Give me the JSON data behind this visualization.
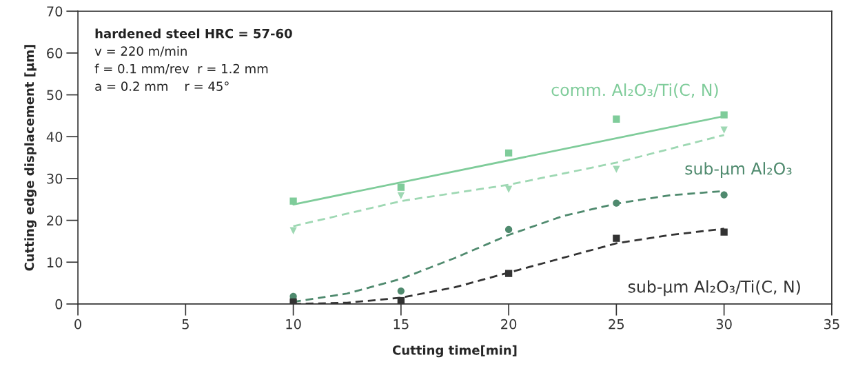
{
  "chart_data": {
    "type": "scatter",
    "xlabel": "Cutting time[min]",
    "ylabel": "Cutting edge displacement [µm]",
    "xlim": [
      0,
      35
    ],
    "ylim": [
      0,
      70
    ],
    "xticks": [
      0,
      5,
      10,
      15,
      20,
      25,
      30,
      35
    ],
    "yticks": [
      0,
      10,
      20,
      30,
      40,
      50,
      60,
      70
    ],
    "grid": false,
    "legend": false,
    "series": [
      {
        "marker": "square",
        "color": "#7fcc9a",
        "x": [
          10,
          15,
          20,
          25,
          30
        ],
        "values": [
          24.6,
          27.9,
          36.1,
          44.2,
          45.2
        ]
      },
      {
        "type": "line",
        "name": "comm. Al₂O₃/Ti(C, N)",
        "line_style": "solid",
        "color": "#7fcc9a",
        "x": [
          10,
          30
        ],
        "values": [
          23.8,
          44.9
        ]
      },
      {
        "marker": "triangle",
        "color": "#9ed8b3",
        "x": [
          10,
          15,
          20,
          25,
          30
        ],
        "values": [
          17.5,
          25.9,
          27.4,
          32.2,
          41.6
        ]
      },
      {
        "type": "line",
        "line_style": "dashed",
        "color": "#9ed8b3",
        "x": [
          10,
          15,
          20,
          25,
          30
        ],
        "values": [
          18.6,
          24.6,
          28.5,
          33.8,
          40.4
        ]
      },
      {
        "marker": "circle",
        "color": "#4f8a6e",
        "x": [
          10,
          15,
          20,
          25,
          30
        ],
        "values": [
          1.8,
          3.1,
          17.8,
          24.1,
          26.1
        ]
      },
      {
        "type": "line",
        "name": "sub-µm Al₂O₃",
        "line_style": "dashed",
        "color": "#4f8a6e",
        "x": [
          10,
          12.5,
          15,
          17.5,
          20,
          22.5,
          25,
          27.5,
          30
        ],
        "values": [
          0.5,
          2.5,
          6,
          11,
          16.5,
          21,
          24,
          26,
          27
        ]
      },
      {
        "marker": "square",
        "color": "#333333",
        "x": [
          10,
          15,
          20,
          25,
          30
        ],
        "values": [
          0.5,
          0.8,
          7.3,
          15.7,
          17.2
        ]
      },
      {
        "type": "line",
        "name": "sub-µm Al₂O₃/Ti(C, N)",
        "line_style": "dashed",
        "color": "#333333",
        "x": [
          10,
          12.5,
          15,
          17.5,
          20,
          22.5,
          25,
          27.5,
          30
        ],
        "values": [
          0,
          0.3,
          1.5,
          4,
          7.5,
          11,
          14.5,
          16.5,
          18
        ]
      }
    ],
    "annotations": [
      "hardened steel HRC = 57-60",
      "v = 220 m/min",
      "f = 0.1 mm/rev  r = 1.2 mm",
      "a = 0.2 mm    r = 45°"
    ]
  }
}
